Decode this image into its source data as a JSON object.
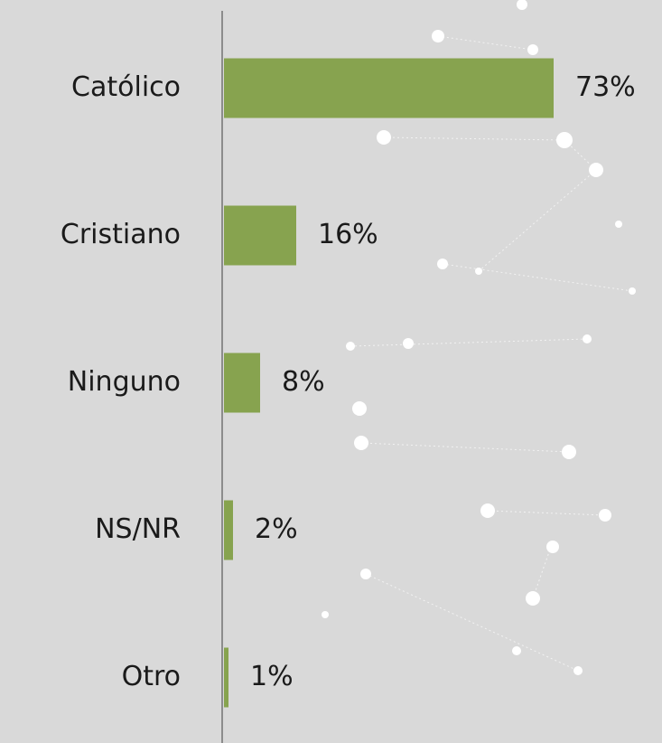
{
  "chart_data": {
    "type": "bar",
    "orientation": "horizontal",
    "categories": [
      "Católico",
      "Cristiano",
      "Ninguno",
      "NS/NR",
      "Otro"
    ],
    "values": [
      73,
      16,
      8,
      2,
      1
    ],
    "value_labels": [
      "73%",
      "16%",
      "8%",
      "2%",
      "1%"
    ],
    "color": "#87a34f"
  }
}
